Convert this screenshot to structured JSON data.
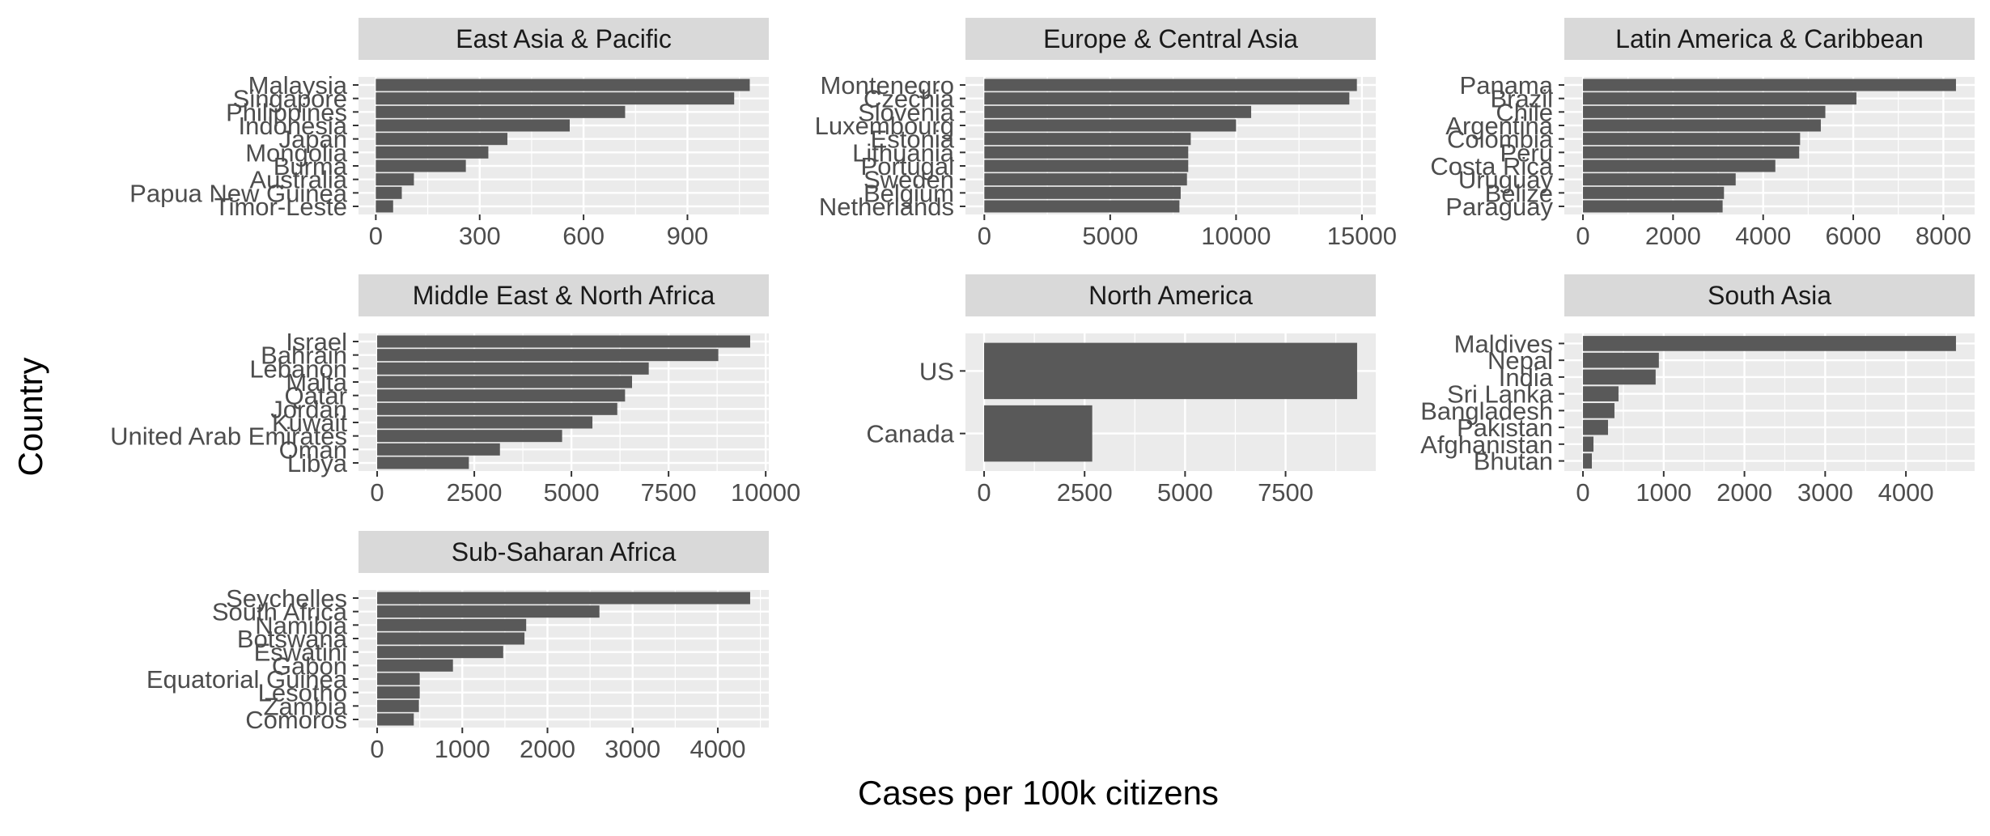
{
  "chart_data": {
    "type": "bar",
    "orientation": "horizontal",
    "xlabel": "Cases per 100k citizens",
    "ylabel": "Country",
    "grid": true,
    "colors": {
      "bar": "#595959",
      "panel_bg": "#ebebeb",
      "strip_bg": "#d9d9d9",
      "grid": "#ffffff",
      "tick_text": "#4d4d4d",
      "strip_text": "#1a1a1a"
    },
    "facets": [
      {
        "title": "East Asia & Pacific",
        "categories": [
          "Malaysia",
          "Singapore",
          "Philippines",
          "Indonesia",
          "Japan",
          "Mongolia",
          "Burma",
          "Australia",
          "Papua New Guinea",
          "Timor-Leste"
        ],
        "values": [
          1080,
          1035,
          720,
          560,
          380,
          325,
          260,
          110,
          75,
          50
        ],
        "xlim": [
          -50,
          1135
        ],
        "xticks": [
          0,
          300,
          600,
          900
        ]
      },
      {
        "title": "Europe & Central Asia",
        "categories": [
          "Montenegro",
          "Czechia",
          "Slovenia",
          "Luxembourg",
          "Estonia",
          "Lithuania",
          "Portugal",
          "Sweden",
          "Belgium",
          "Netherlands"
        ],
        "values": [
          14800,
          14500,
          10600,
          10000,
          8200,
          8100,
          8100,
          8050,
          7800,
          7750
        ],
        "xlim": [
          -750,
          15550
        ],
        "xticks": [
          0,
          5000,
          10000,
          15000
        ]
      },
      {
        "title": "Latin America & Caribbean",
        "categories": [
          "Panama",
          "Brazil",
          "Chile",
          "Argentina",
          "Colombia",
          "Peru",
          "Costa Rica",
          "Uruguay",
          "Belize",
          "Paraguay"
        ],
        "values": [
          8280,
          6070,
          5380,
          5280,
          4820,
          4800,
          4270,
          3390,
          3130,
          3100
        ],
        "xlim": [
          -414,
          8694
        ],
        "xticks": [
          0,
          2000,
          4000,
          6000,
          8000
        ]
      },
      {
        "title": "Middle East & North Africa",
        "categories": [
          "Israel",
          "Bahrain",
          "Lebanon",
          "Malta",
          "Qatar",
          "Jordan",
          "Kuwait",
          "United Arab Emirates",
          "Oman",
          "Libya"
        ],
        "values": [
          9600,
          8780,
          6990,
          6560,
          6380,
          6180,
          5540,
          4760,
          3160,
          2360
        ],
        "xlim": [
          -480,
          10080
        ],
        "xticks": [
          0,
          2500,
          5000,
          7500,
          10000
        ]
      },
      {
        "title": "North America",
        "categories": [
          "US",
          "Canada"
        ],
        "values": [
          9280,
          2690
        ],
        "xlim": [
          -464,
          9744
        ],
        "xticks": [
          0,
          2500,
          5000,
          7500
        ]
      },
      {
        "title": "South Asia",
        "categories": [
          "Maldives",
          "Nepal",
          "India",
          "Sri Lanka",
          "Bangladesh",
          "Pakistan",
          "Afghanistan",
          "Bhutan"
        ],
        "values": [
          4620,
          940,
          900,
          440,
          390,
          310,
          130,
          110
        ],
        "xlim": [
          -231,
          4851
        ],
        "xticks": [
          0,
          1000,
          2000,
          3000,
          4000
        ]
      },
      {
        "title": "Sub-Saharan Africa",
        "categories": [
          "Seychelles",
          "South Africa",
          "Namibia",
          "Botswana",
          "Eswatini",
          "Gabon",
          "Equatorial Guinea",
          "Lesotho",
          "Zambia",
          "Comoros"
        ],
        "values": [
          4380,
          2610,
          1750,
          1730,
          1480,
          890,
          500,
          500,
          490,
          430
        ],
        "xlim": [
          -219,
          4599
        ],
        "xticks": [
          0,
          1000,
          2000,
          3000,
          4000
        ]
      }
    ]
  }
}
